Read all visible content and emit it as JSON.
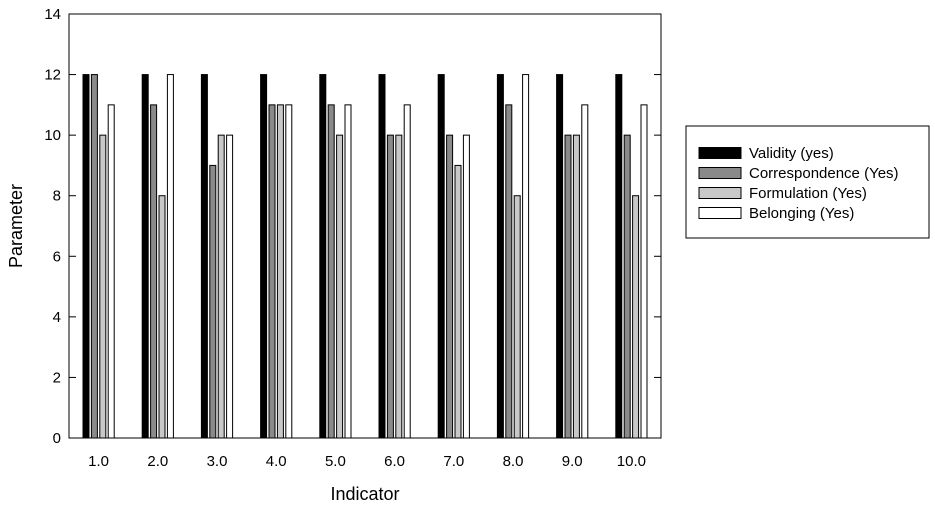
{
  "chart_data": {
    "type": "bar",
    "xlabel": "Indicator",
    "ylabel": "Parameter",
    "ylim": [
      0,
      14
    ],
    "yticks": [
      "0",
      "2",
      "4",
      "6",
      "8",
      "10",
      "12",
      "14"
    ],
    "categories": [
      "1.0",
      "2.0",
      "3.0",
      "4.0",
      "5.0",
      "6.0",
      "7.0",
      "8.0",
      "9.0",
      "10.0"
    ],
    "series": [
      {
        "name": "Validity (yes)",
        "color": "#000000",
        "values": [
          12,
          12,
          12,
          12,
          12,
          12,
          12,
          12,
          12,
          12
        ]
      },
      {
        "name": "Correspondence (Yes)",
        "color": "#8a8a8a",
        "values": [
          12,
          11,
          9,
          11,
          11,
          10,
          10,
          11,
          10,
          10
        ]
      },
      {
        "name": "Formulation (Yes)",
        "color": "#c8c8c8",
        "values": [
          10,
          8,
          10,
          11,
          10,
          10,
          9,
          8,
          10,
          8
        ]
      },
      {
        "name": "Belonging (Yes)",
        "color": "#ffffff",
        "values": [
          11,
          12,
          10,
          11,
          11,
          11,
          10,
          12,
          11,
          11
        ]
      }
    ],
    "legend_position": "right",
    "grid": false
  }
}
